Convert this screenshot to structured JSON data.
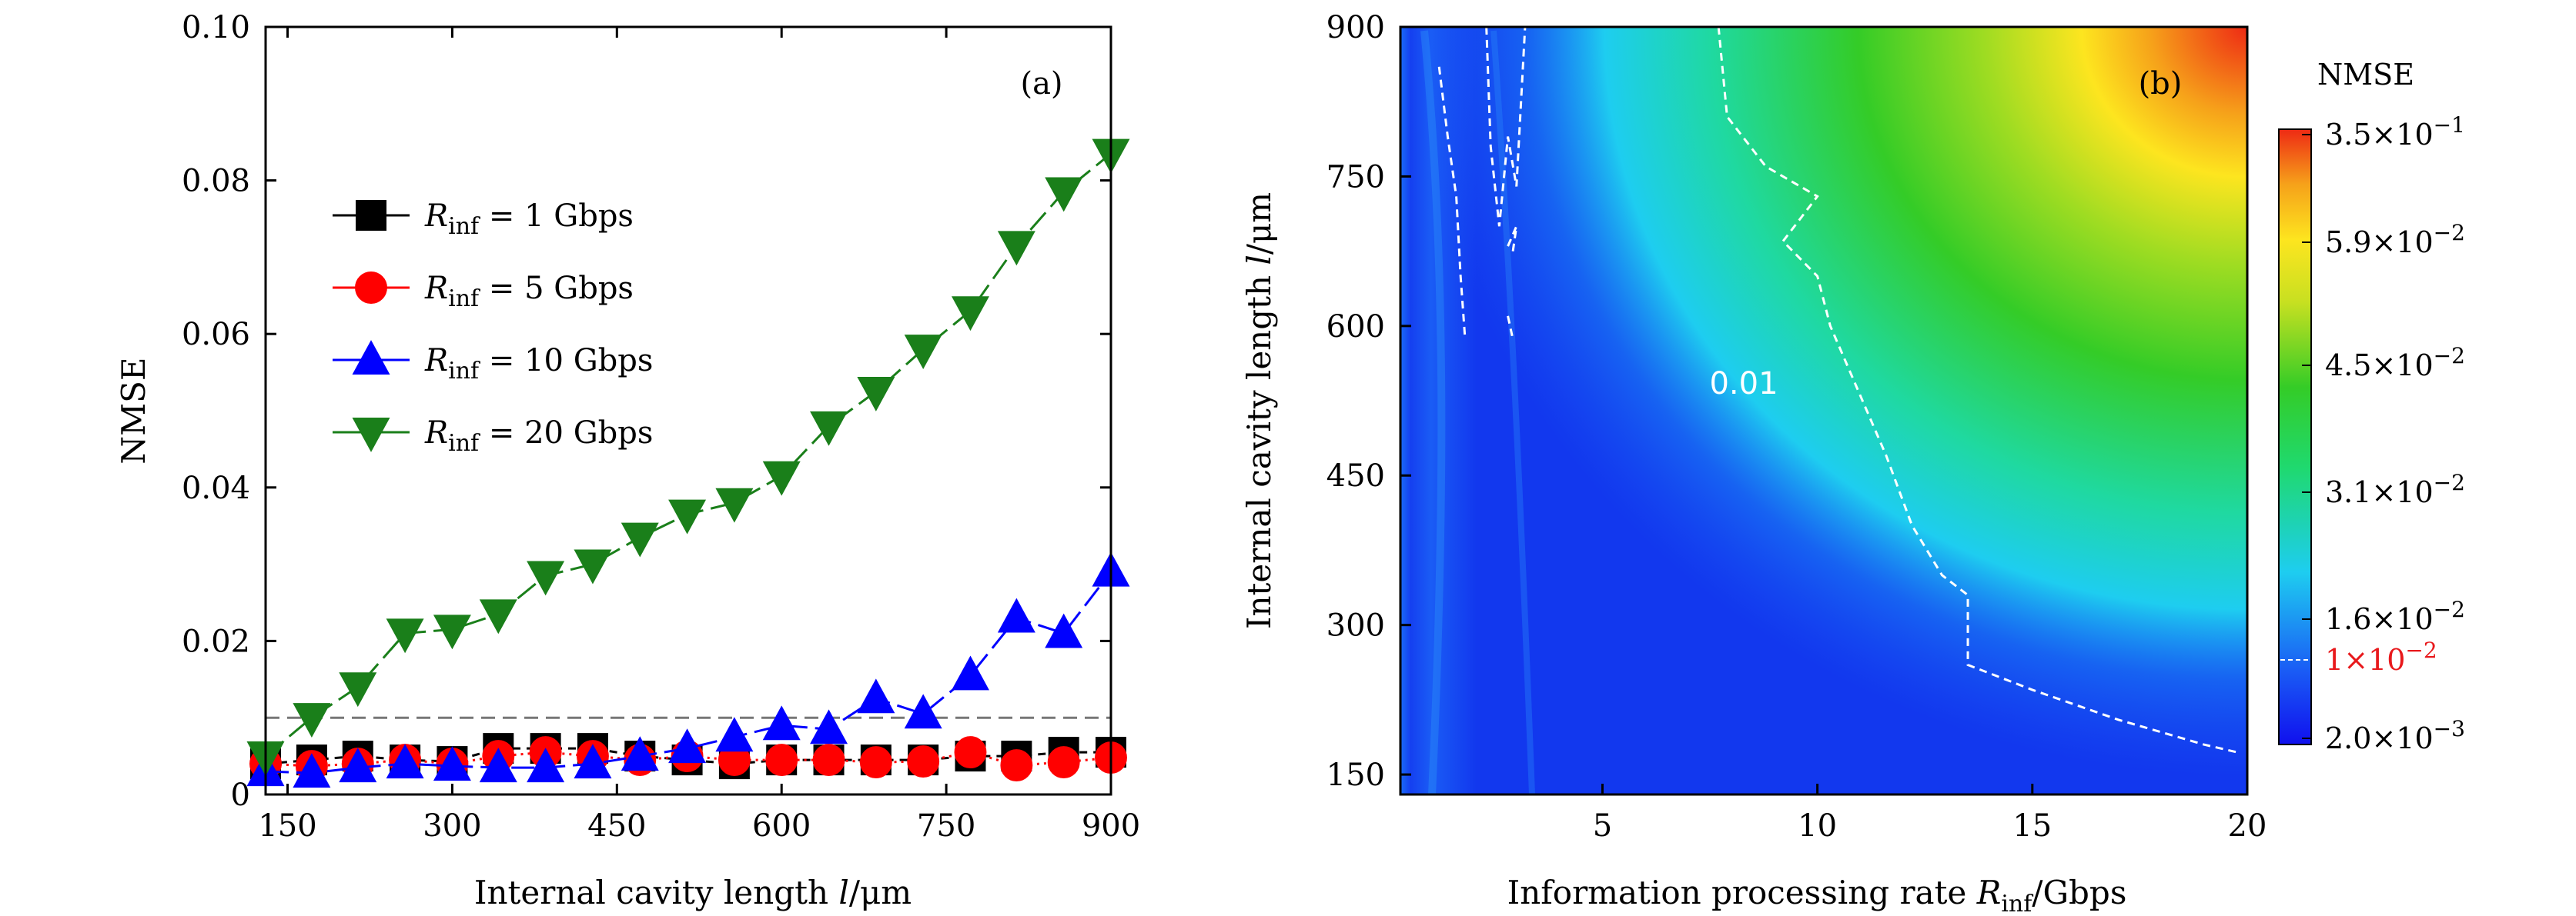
{
  "chart_data": [
    {
      "type": "scatter",
      "panel_tag": "(a)",
      "xlabel_pre": "Internal cavity length ",
      "xlabel_var": "l",
      "xlabel_post": "/μm",
      "ylabel": "NMSE",
      "xlim": [
        130,
        900
      ],
      "ylim": [
        0,
        0.1
      ],
      "xticks": [
        150,
        300,
        450,
        600,
        750,
        900
      ],
      "yticks": [
        0,
        0.02,
        0.04,
        0.06,
        0.08,
        0.1
      ],
      "ytick_labels": [
        "0",
        "0.02",
        "0.04",
        "0.06",
        "0.08",
        "0.10"
      ],
      "threshold_line": 0.01,
      "legend_placement": "upper-left",
      "x": [
        130,
        172,
        214,
        257,
        300,
        342,
        385,
        428,
        471,
        514,
        557,
        600,
        643,
        686,
        729,
        772,
        814,
        857,
        900
      ],
      "series": [
        {
          "name_var": "R",
          "name_sub": "inf",
          "name_rest": " = 1 Gbps",
          "marker": "square",
          "color": "#000000",
          "dash": "10,8",
          "values": [
            0.004,
            0.0045,
            0.005,
            0.0045,
            0.0043,
            0.006,
            0.006,
            0.006,
            0.005,
            0.0045,
            0.004,
            0.0045,
            0.0045,
            0.0045,
            0.0045,
            0.005,
            0.005,
            0.0055,
            0.0055
          ]
        },
        {
          "name_var": "R",
          "name_sub": "inf",
          "name_rest": " = 5 Gbps",
          "marker": "circle",
          "color": "#ff0000",
          "dash": "3,6",
          "values": [
            0.004,
            0.0037,
            0.004,
            0.0045,
            0.004,
            0.005,
            0.0055,
            0.005,
            0.0045,
            0.005,
            0.0045,
            0.0045,
            0.0045,
            0.0042,
            0.0043,
            0.0055,
            0.0038,
            0.0042,
            0.0048
          ]
        },
        {
          "name_var": "R",
          "name_sub": "inf",
          "name_rest": " = 10 Gbps",
          "marker": "triangle-up",
          "color": "#0000ff",
          "dash": "30,10",
          "values": [
            0.003,
            0.0028,
            0.0035,
            0.004,
            0.0037,
            0.0035,
            0.0035,
            0.004,
            0.005,
            0.006,
            0.0075,
            0.009,
            0.0085,
            0.0125,
            0.0105,
            0.0155,
            0.023,
            0.021,
            0.029
          ]
        },
        {
          "name_var": "R",
          "name_sub": "inf",
          "name_rest": " = 20 Gbps",
          "marker": "triangle-down",
          "color": "#1a7f1a",
          "dash": "30,10",
          "values": [
            0.005,
            0.01,
            0.014,
            0.021,
            0.0215,
            0.0235,
            0.0285,
            0.03,
            0.0335,
            0.0365,
            0.038,
            0.0415,
            0.048,
            0.0525,
            0.058,
            0.063,
            0.0715,
            0.0785,
            0.0835
          ]
        }
      ]
    },
    {
      "type": "heatmap",
      "panel_tag": "(b)",
      "xlabel_pre": "Information processing rate ",
      "xlabel_var": "R",
      "xlabel_sub": "inf",
      "xlabel_post": "/Gbps",
      "ylabel_pre": "Internal cavity length ",
      "ylabel_var": "l",
      "ylabel_post": "/μm",
      "xlim": [
        0.3,
        20
      ],
      "ylim": [
        130,
        900
      ],
      "xticks": [
        5,
        10,
        15,
        20
      ],
      "yticks": [
        150,
        300,
        450,
        600,
        750,
        900
      ],
      "colorbar_title": "NMSE",
      "colorbar_ticks": [
        {
          "mantissa": "3.5",
          "exp": "−1"
        },
        {
          "mantissa": "5.9",
          "exp": "−2"
        },
        {
          "mantissa": "4.5",
          "exp": "−2"
        },
        {
          "mantissa": "3.1",
          "exp": "−2"
        },
        {
          "mantissa": "1.6",
          "exp": "−2"
        },
        {
          "mantissa": "2.0",
          "exp": "−3"
        }
      ],
      "colorbar_highlight": {
        "mantissa": "1",
        "exp": "−2",
        "color": "#e8191c"
      },
      "contour_label": "0.01",
      "contour_value": 0.01,
      "colors": [
        "#1010ee",
        "#1a5cf5",
        "#1ecdf0",
        "#1fd96f",
        "#34cc27",
        "#c8e021",
        "#fde51f",
        "#f6a21a",
        "#ee2a14"
      ],
      "contour_main": [
        [
          7.7,
          900
        ],
        [
          7.9,
          810
        ],
        [
          8.8,
          760
        ],
        [
          10.0,
          730
        ],
        [
          9.2,
          685
        ],
        [
          10.0,
          650
        ],
        [
          10.3,
          600
        ],
        [
          10.9,
          540
        ],
        [
          11.6,
          470
        ],
        [
          12.2,
          400
        ],
        [
          12.9,
          350
        ],
        [
          13.5,
          330
        ],
        [
          13.5,
          260
        ],
        [
          15.0,
          235
        ],
        [
          17.0,
          205
        ],
        [
          19.0,
          180
        ],
        [
          19.8,
          172
        ]
      ],
      "contour_side": [
        [
          [
            1.2,
            860
          ],
          [
            1.4,
            790
          ],
          [
            1.6,
            730
          ],
          [
            1.7,
            650
          ],
          [
            1.8,
            590
          ]
        ],
        [
          [
            2.3,
            900
          ],
          [
            2.4,
            780
          ],
          [
            2.6,
            700
          ],
          [
            2.8,
            790
          ],
          [
            3.0,
            740
          ],
          [
            3.2,
            900
          ]
        ],
        [
          [
            2.8,
            680
          ],
          [
            3.0,
            700
          ],
          [
            2.9,
            670
          ]
        ],
        [
          [
            2.8,
            610
          ],
          [
            2.9,
            590
          ]
        ]
      ]
    }
  ]
}
